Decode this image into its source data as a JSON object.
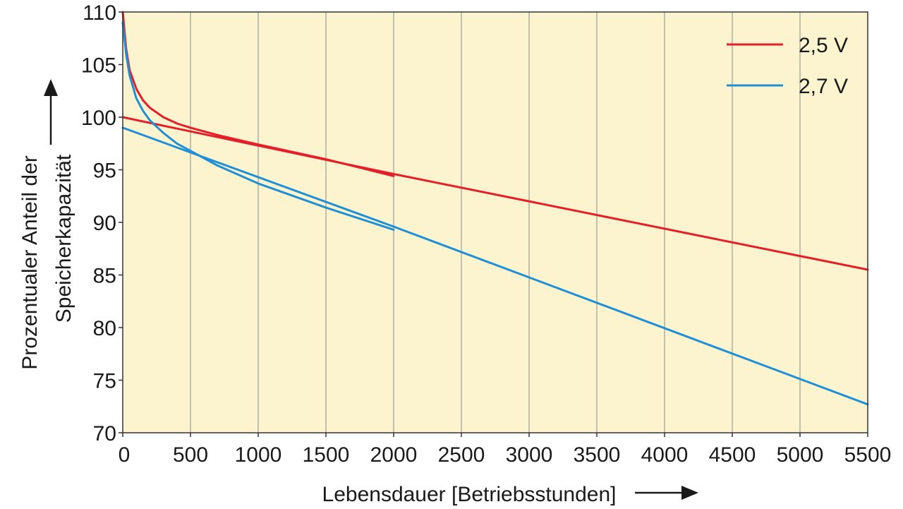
{
  "chart_data": {
    "type": "line",
    "title": "",
    "xlabel": "Lebensdauer [Betriebsstunden]",
    "ylabel_line1": "Prozentualer Anteil der",
    "ylabel_line2": "Speicherkapazität",
    "xlim": [
      0,
      5500
    ],
    "ylim": [
      70,
      110
    ],
    "x_ticks": [
      0,
      500,
      1000,
      1500,
      2000,
      2500,
      3000,
      3500,
      4000,
      4500,
      5000,
      5500
    ],
    "x_tick_labels": [
      "0",
      "500",
      "1000",
      "1500",
      "2000",
      "2500",
      "3000",
      "3500",
      "4000",
      "4500",
      "5000",
      "5500"
    ],
    "y_ticks": [
      70,
      75,
      80,
      85,
      90,
      95,
      100,
      105,
      110
    ],
    "y_tick_labels": [
      "70",
      "75",
      "80",
      "85",
      "90",
      "95",
      "100",
      "105",
      "110"
    ],
    "grid": true,
    "grid_axis": "x",
    "legend_position": "top-right",
    "plot_background": "#fcf4cf",
    "series": [
      {
        "name": "2,5 V",
        "color": "#e3202a",
        "segments": [
          {
            "x": [
              0,
              25,
              50,
              100,
              150,
              200,
              300,
              400,
              500,
              700,
              1000,
              1500,
              2000
            ],
            "y": [
              110,
              106.5,
              104.5,
              102.7,
              101.6,
              100.9,
              100.0,
              99.4,
              99.0,
              98.3,
              97.4,
              96.0,
              94.4
            ]
          },
          {
            "x": [
              0,
              2000,
              5500
            ],
            "y": [
              100,
              94.6,
              85.5
            ]
          }
        ]
      },
      {
        "name": "2,7 V",
        "color": "#1f8fd6",
        "segments": [
          {
            "x": [
              0,
              25,
              50,
              100,
              150,
              200,
              300,
              400,
              500,
              700,
              1000,
              1500,
              2000
            ],
            "y": [
              109,
              106.0,
              104.0,
              101.8,
              100.6,
              99.7,
              98.5,
              97.5,
              96.8,
              95.4,
              93.7,
              91.4,
              89.3
            ]
          },
          {
            "x": [
              0,
              2000,
              5500
            ],
            "y": [
              99,
              89.6,
              72.7
            ]
          }
        ]
      }
    ]
  }
}
